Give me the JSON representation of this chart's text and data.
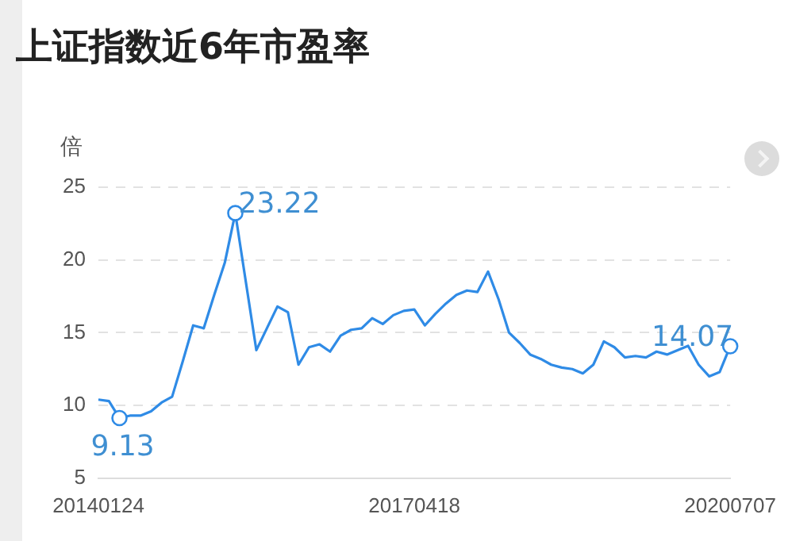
{
  "chart_data": {
    "type": "line",
    "title": "上证指数近6年市盈率",
    "ylabel": "倍",
    "categories": [
      "20140124",
      null,
      null,
      null,
      null,
      null,
      null,
      null,
      null,
      null,
      null,
      null,
      null,
      null,
      null,
      null,
      null,
      null,
      null,
      null,
      null,
      null,
      null,
      null,
      null,
      null,
      null,
      null,
      null,
      null,
      "20170418",
      null,
      null,
      null,
      null,
      null,
      null,
      null,
      null,
      null,
      null,
      null,
      null,
      null,
      null,
      null,
      null,
      null,
      null,
      null,
      null,
      null,
      null,
      null,
      null,
      null,
      null,
      null,
      null,
      null,
      "20200707"
    ],
    "series": [
      {
        "color": "#2f8be6",
        "values": [
          10.4,
          10.3,
          9.13,
          9.3,
          9.3,
          9.6,
          10.2,
          10.6,
          13.0,
          15.5,
          15.3,
          17.6,
          19.8,
          23.22,
          18.5,
          13.8,
          15.3,
          16.8,
          16.4,
          12.8,
          14.0,
          14.2,
          13.7,
          14.8,
          15.2,
          15.3,
          16.0,
          15.6,
          16.2,
          16.5,
          16.6,
          15.5,
          16.3,
          17.0,
          17.6,
          17.9,
          17.8,
          19.2,
          17.3,
          15.0,
          14.3,
          13.5,
          13.2,
          12.8,
          12.6,
          12.5,
          12.2,
          12.8,
          14.4,
          14.0,
          13.3,
          13.4,
          13.3,
          13.7,
          13.5,
          13.8,
          14.1,
          12.8,
          12.0,
          12.3,
          14.07
        ],
        "value_labels": [
          null,
          null,
          "9.13",
          null,
          null,
          null,
          null,
          null,
          null,
          null,
          null,
          null,
          null,
          "23.22",
          null,
          null,
          null,
          null,
          null,
          null,
          null,
          null,
          null,
          null,
          null,
          null,
          null,
          null,
          null,
          null,
          null,
          null,
          null,
          null,
          null,
          null,
          null,
          null,
          null,
          null,
          null,
          null,
          null,
          null,
          null,
          null,
          null,
          null,
          null,
          null,
          null,
          null,
          null,
          null,
          null,
          null,
          null,
          null,
          null,
          null,
          "14.07"
        ]
      }
    ],
    "ylim": [
      5,
      25
    ],
    "yticks": [
      5,
      10,
      15,
      20,
      25
    ],
    "grid": "y"
  }
}
